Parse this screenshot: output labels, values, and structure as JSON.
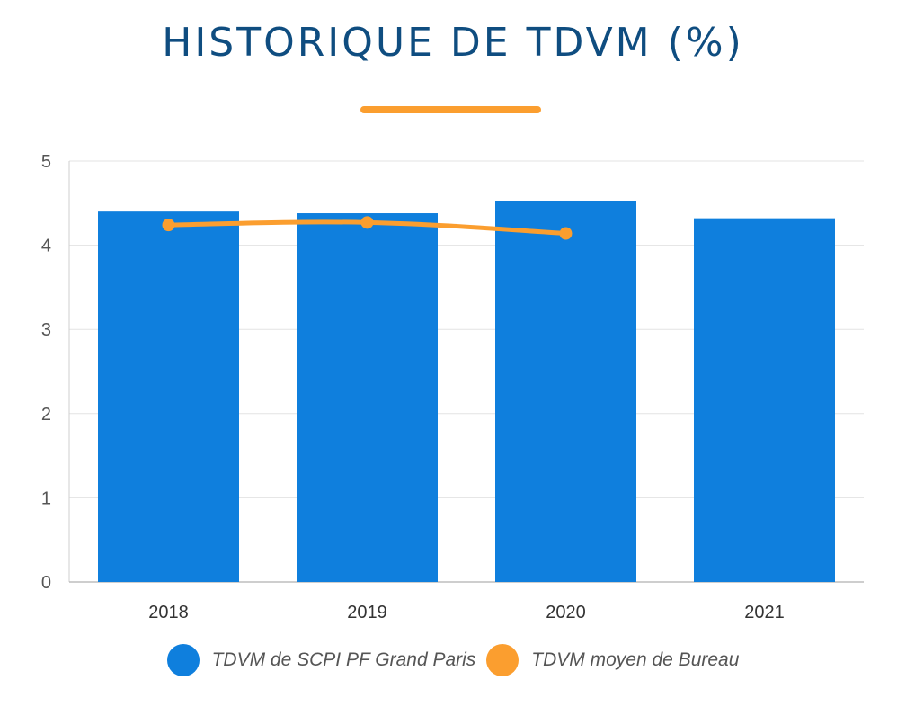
{
  "title": "HISTORIQUE DE TDVM (%)",
  "colors": {
    "title": "#0f4d80",
    "accent": "#fb9e2f",
    "bar": "#0f7fdd",
    "line": "#fb9e2f",
    "grid": "#e3e3e3",
    "axis_text": "#555555"
  },
  "chart_data": {
    "type": "bar",
    "categories": [
      "2018",
      "2019",
      "2020",
      "2021"
    ],
    "ylim": [
      0,
      5
    ],
    "yticks": [
      "0",
      "1",
      "2",
      "3",
      "4",
      "5"
    ],
    "grid": true,
    "legend_position": "bottom",
    "series": [
      {
        "name": "TDVM de SCPI PF Grand Paris",
        "type": "bar",
        "values": [
          4.4,
          4.38,
          4.53,
          4.32
        ]
      },
      {
        "name": "TDVM moyen de Bureau",
        "type": "line",
        "values": [
          4.24,
          4.27,
          4.14,
          null
        ]
      }
    ]
  }
}
